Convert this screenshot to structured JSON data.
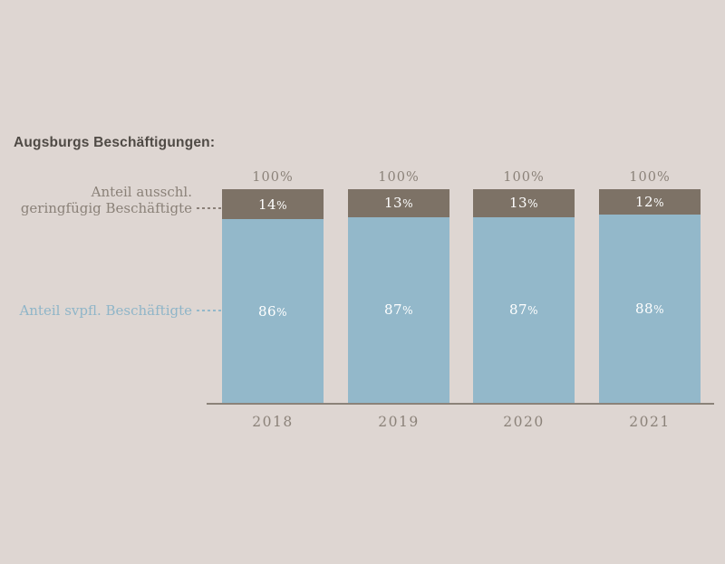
{
  "title": "Augsburgs Beschäftigungen:",
  "legend": {
    "top_line1": "Anteil ausschl.",
    "top_line2": "geringfügig Beschäftigte",
    "bottom": "Anteil svpfl. Beschäftigte"
  },
  "chart_data": {
    "type": "bar",
    "stacked": true,
    "unit": "%",
    "categories": [
      "2018",
      "2019",
      "2020",
      "2021"
    ],
    "series": [
      {
        "name": "Anteil ausschl. geringfügig Beschäftigte",
        "color": "#7d7266",
        "values": [
          14,
          13,
          13,
          12
        ]
      },
      {
        "name": "Anteil svpfl. Beschäftigte",
        "color": "#93b8ca",
        "values": [
          86,
          87,
          87,
          88
        ]
      }
    ],
    "total_labels": [
      "100%",
      "100%",
      "100%",
      "100%"
    ],
    "ylim": [
      0,
      100
    ],
    "grid": false,
    "legend_position": "left",
    "title": "Augsburgs Beschäftigungen:"
  },
  "colors": {
    "background": "#ded6d2",
    "title_text": "#4f4a45",
    "muted_text": "#8b8279",
    "axis_line": "#8b8279",
    "segment_top": "#7d7266",
    "segment_bottom": "#93b8ca",
    "bar_value_text": "#ffffff",
    "legend_top_text": "#8a8178",
    "legend_bottom_text": "#8fb5c8"
  }
}
